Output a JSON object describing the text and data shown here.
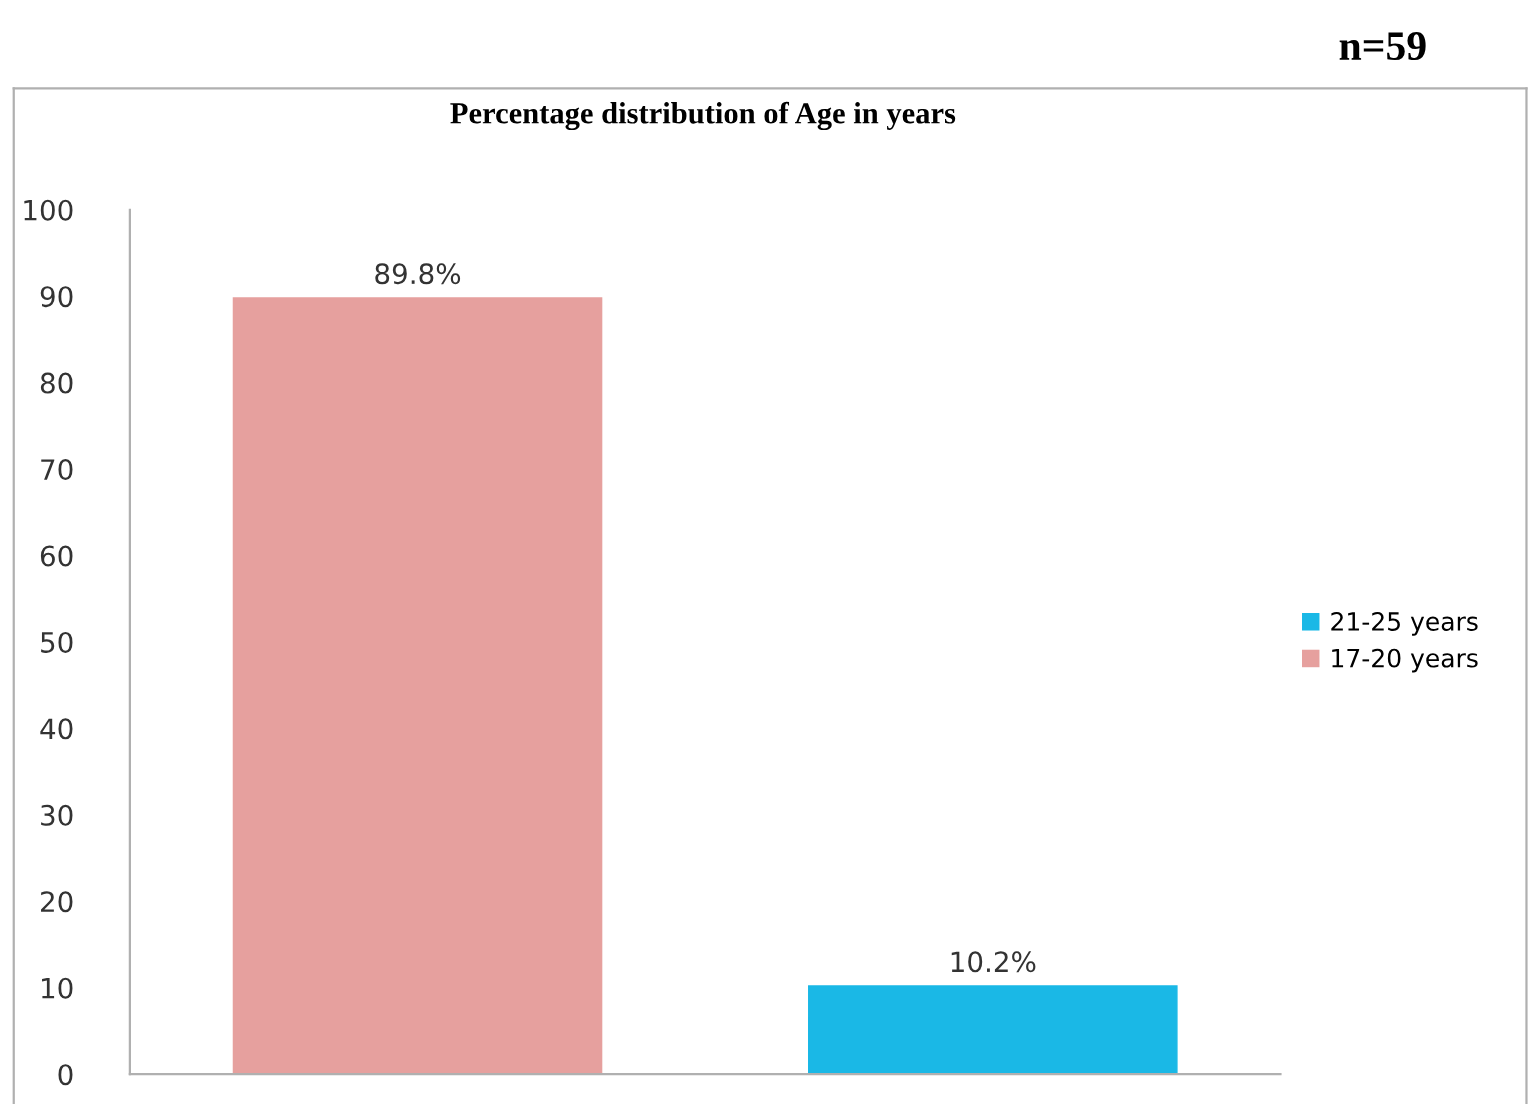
{
  "chart_data": {
    "type": "bar",
    "title": "Percentage distribution of Age in years",
    "categories": [
      null,
      null
    ],
    "series": [
      {
        "name": "17-20 years",
        "color": "#e6a09e",
        "values": [
          89.8,
          null
        ],
        "value_labels": [
          "89.8%",
          null
        ]
      },
      {
        "name": "21-25 years",
        "color": "#1ab8e6",
        "values": [
          null,
          10.2
        ],
        "value_labels": [
          null,
          "10.2%"
        ]
      }
    ],
    "ylim": [
      0,
      100
    ],
    "yticks": [
      0,
      10,
      20,
      30,
      40,
      50,
      60,
      70,
      80,
      90,
      100
    ],
    "grid": false,
    "legend": "right",
    "annotations": [
      "n=59"
    ]
  }
}
